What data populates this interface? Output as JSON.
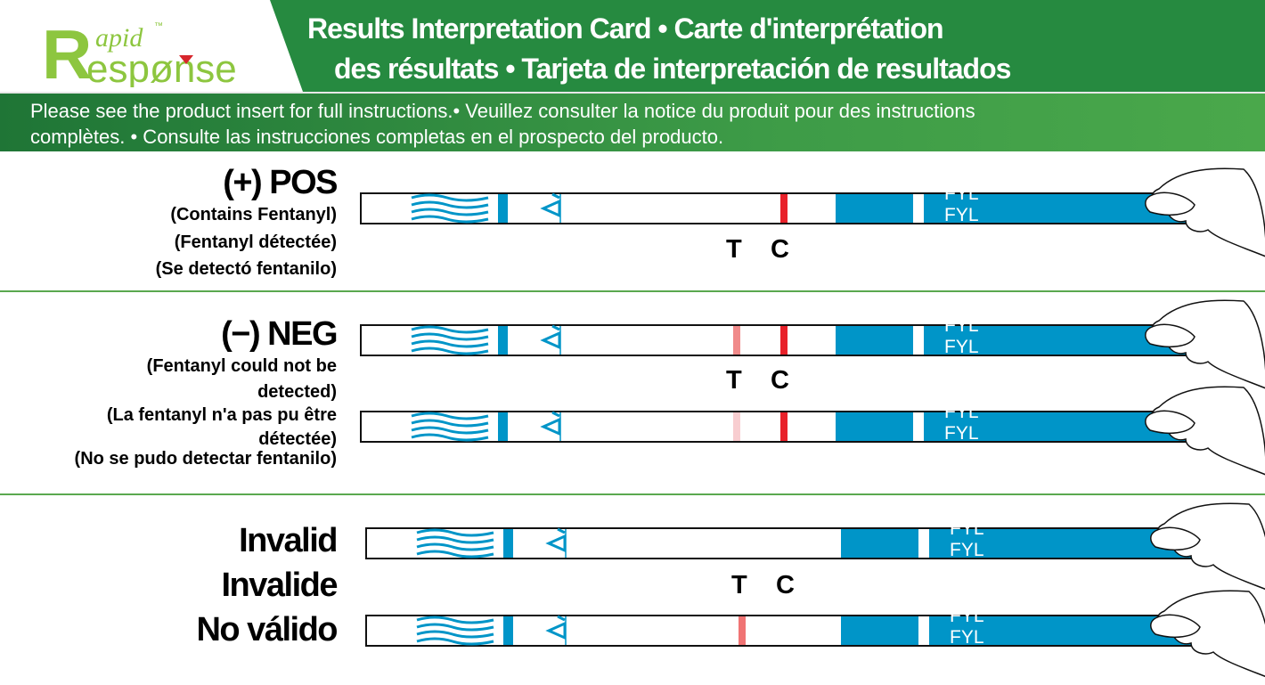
{
  "logo": {
    "text": "Rapid Response",
    "tm": "™",
    "color": "#8dc63f"
  },
  "header": {
    "title_line1": "Results Interpretation Card • Carte d'interprétation",
    "title_line2": "des résultats • Tarjeta de interpretación de resultados",
    "instructions_line1": "Please see the product insert for full instructions.• Veuillez consulter la notice du produit pour des instructions",
    "instructions_line2": "complètes. • Consulte las instrucciones completas en el prospecto del producto."
  },
  "colors": {
    "green": "#268a40",
    "strip_blue": "#0095c8",
    "line_red": "#e8212a"
  },
  "positive": {
    "heading": "(+) POS",
    "lines": [
      "(Contains Fentanyl)",
      "(Fentanyl détectée)",
      "(Se detectó fentanilo)"
    ]
  },
  "negative": {
    "heading": "(−) NEG",
    "lines": [
      "(Fentanyl could not be",
      "detected)",
      "(La fentanyl n'a pas pu être",
      "détectée)",
      "(No se pudo detectar fentanilo)"
    ]
  },
  "invalid": {
    "headings": [
      "Invalid",
      "Invalide",
      "No válido"
    ]
  },
  "markers": {
    "t": "T",
    "c": "C"
  },
  "strip_text": "FYL",
  "strips": [
    {
      "t": null,
      "c": "#e8212a"
    },
    {
      "t": "#f08a8a",
      "c": "#e8212a"
    },
    {
      "t": "#f8cdd0",
      "c": "#e8212a"
    },
    {
      "t": null,
      "c": null
    },
    {
      "t": "#f07474",
      "c": null
    }
  ]
}
